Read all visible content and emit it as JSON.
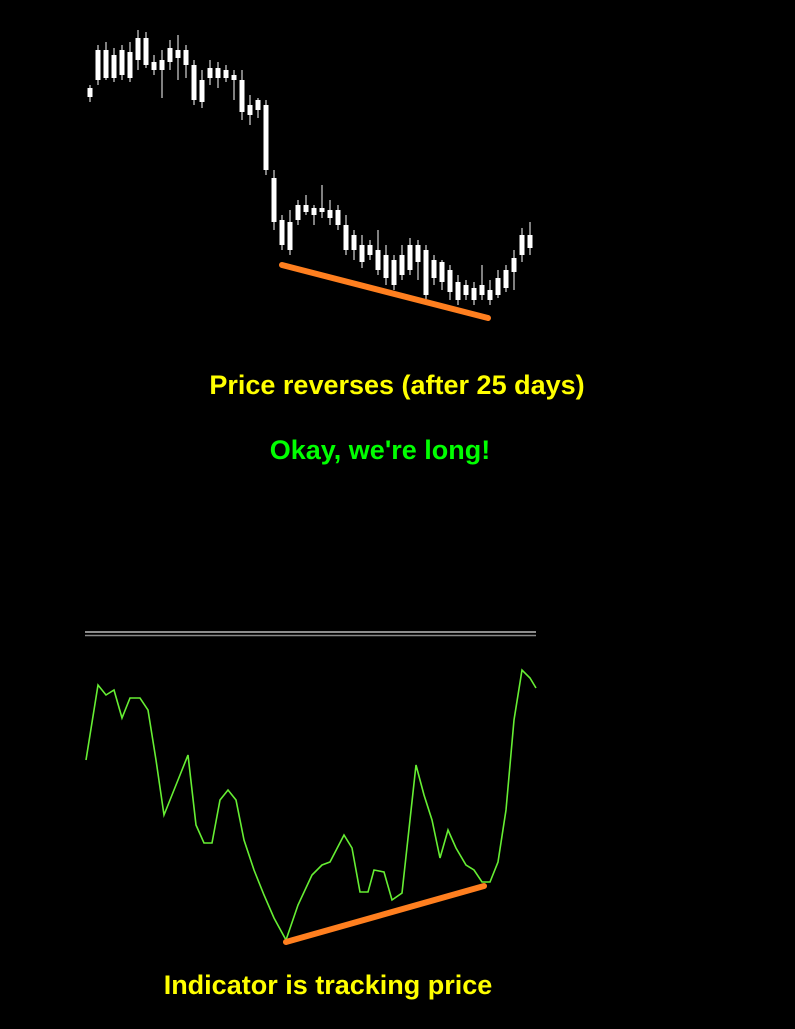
{
  "annotations": {
    "price_note": "Price reverses (after 25 days)",
    "signal_note": "Okay, we're long!",
    "indicator_note": "Indicator is tracking price"
  }
}
